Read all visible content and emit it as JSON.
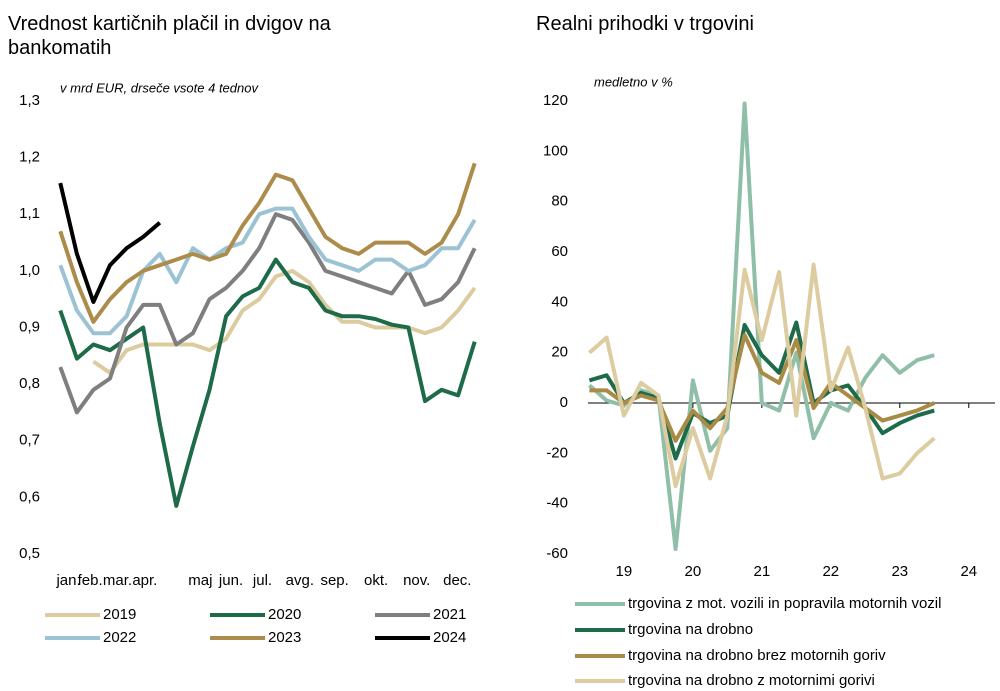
{
  "chart_data": [
    {
      "type": "line",
      "title": "Vrednost kartičnih plačil in dvigov na bankomatih",
      "subtitle": "v mrd EUR, drseče vsote 4 tednov",
      "x": [
        1,
        3,
        5,
        7,
        9,
        11,
        13,
        15,
        17,
        19,
        21,
        23,
        25,
        27,
        29,
        31,
        33,
        35,
        37,
        39,
        41,
        43,
        45,
        47,
        49,
        51
      ],
      "xlim": [
        0,
        52
      ],
      "xticks": [
        {
          "value": 2,
          "label": "jan."
        },
        {
          "value": 4.6,
          "label": "feb."
        },
        {
          "value": 7.9,
          "label": "mar."
        },
        {
          "value": 11.2,
          "label": "apr."
        },
        {
          "value": 17.9,
          "label": "maj"
        },
        {
          "value": 21.6,
          "label": "jun."
        },
        {
          "value": 25.4,
          "label": "jul."
        },
        {
          "value": 29.9,
          "label": "avg."
        },
        {
          "value": 34.1,
          "label": "sep."
        },
        {
          "value": 39.1,
          "label": "okt."
        },
        {
          "value": 44,
          "label": "nov."
        },
        {
          "value": 48.9,
          "label": "dec."
        }
      ],
      "ylim": [
        0.5,
        1.3
      ],
      "yticks": [
        {
          "value": 0.5,
          "label": "0,5"
        },
        {
          "value": 0.6,
          "label": "0,6"
        },
        {
          "value": 0.7,
          "label": "0,7"
        },
        {
          "value": 0.8,
          "label": "0,8"
        },
        {
          "value": 0.9,
          "label": "0,9"
        },
        {
          "value": 1.0,
          "label": "1,0"
        },
        {
          "value": 1.1,
          "label": "1,1"
        },
        {
          "value": 1.2,
          "label": "1,2"
        },
        {
          "value": 1.3,
          "label": "1,3"
        }
      ],
      "grid": false,
      "series": [
        {
          "name": "2019",
          "color": "#dccb9f",
          "values": [
            null,
            null,
            0.84,
            0.82,
            0.86,
            0.87,
            0.87,
            0.87,
            0.87,
            0.86,
            0.88,
            0.93,
            0.95,
            0.99,
            1.0,
            0.98,
            0.94,
            0.91,
            0.91,
            0.9,
            0.9,
            0.9,
            0.89,
            0.9,
            0.93,
            0.97
          ]
        },
        {
          "name": "2020",
          "color": "#1e6b4a",
          "values": [
            0.93,
            0.845,
            0.87,
            0.86,
            0.88,
            0.9,
            0.73,
            0.585,
            0.69,
            0.79,
            0.92,
            0.955,
            0.97,
            1.02,
            0.98,
            0.97,
            0.93,
            0.92,
            0.92,
            0.915,
            0.905,
            0.9,
            0.77,
            0.79,
            0.78,
            0.875
          ]
        },
        {
          "name": "2021",
          "color": "#7f7f7f",
          "values": [
            0.83,
            0.75,
            0.79,
            0.81,
            0.9,
            0.94,
            0.94,
            0.87,
            0.89,
            0.95,
            0.97,
            1.0,
            1.04,
            1.1,
            1.09,
            1.05,
            1.0,
            0.99,
            0.98,
            0.97,
            0.96,
            1.0,
            0.94,
            0.95,
            0.98,
            1.04
          ]
        },
        {
          "name": "2022",
          "color": "#9cc3d3",
          "values": [
            1.01,
            0.93,
            0.89,
            0.89,
            0.92,
            1.0,
            1.03,
            0.98,
            1.04,
            1.02,
            1.04,
            1.05,
            1.1,
            1.11,
            1.11,
            1.06,
            1.02,
            1.01,
            1.0,
            1.02,
            1.02,
            1.0,
            1.01,
            1.04,
            1.04,
            1.09
          ]
        },
        {
          "name": "2023",
          "color": "#ad8c4b",
          "values": [
            1.07,
            0.98,
            0.91,
            0.95,
            0.98,
            1.0,
            1.01,
            1.02,
            1.03,
            1.02,
            1.03,
            1.08,
            1.12,
            1.17,
            1.16,
            1.11,
            1.06,
            1.04,
            1.03,
            1.05,
            1.05,
            1.05,
            1.03,
            1.05,
            1.1,
            1.19
          ]
        },
        {
          "name": "2024",
          "color": "#000000",
          "values": [
            1.155,
            1.03,
            0.945,
            1.01,
            1.04,
            1.06,
            1.085,
            null,
            null,
            null,
            null,
            null,
            null,
            null,
            null,
            null,
            null,
            null,
            null,
            null,
            null,
            null,
            null,
            null,
            null,
            null
          ]
        }
      ]
    },
    {
      "type": "line",
      "title": "Realni prihodki v trgovini",
      "subtitle": "medletno v %",
      "x": [
        18.5,
        18.75,
        19,
        19.25,
        19.5,
        19.75,
        20,
        20.25,
        20.5,
        20.75,
        21,
        21.25,
        21.5,
        21.75,
        22,
        22.25,
        22.5,
        22.75,
        23,
        23.25,
        23.5
      ],
      "xlim": [
        18.48,
        24.38
      ],
      "xticks": [
        19,
        20,
        21,
        22,
        23,
        24
      ],
      "ylim": [
        -60,
        120
      ],
      "yticks": [
        -60,
        -40,
        -20,
        0,
        20,
        40,
        60,
        80,
        100,
        120
      ],
      "grid": false,
      "series": [
        {
          "name": "trgovina z mot. vozili in popravila motornih vozil",
          "color": "#8fbfa8",
          "values": [
            7,
            1,
            -1,
            5,
            3,
            -58,
            9,
            -19,
            -10,
            119,
            0,
            -3,
            20,
            -14,
            0,
            -3,
            10,
            19,
            12,
            17,
            19
          ]
        },
        {
          "name": "trgovina na drobno",
          "color": "#1e6b4a",
          "values": [
            9,
            11,
            0,
            4,
            2,
            -22,
            -4,
            -8,
            -5,
            31,
            19,
            12,
            32,
            0,
            5,
            7,
            -2,
            -12,
            -8,
            -5,
            -3
          ]
        },
        {
          "name": "trgovina na drobno brez motornih goriv",
          "color": "#a88b45",
          "values": [
            5,
            5,
            0,
            3,
            1,
            -15,
            -3,
            -10,
            -2,
            27,
            12,
            8,
            25,
            -2,
            8,
            3,
            -2,
            -7,
            -5,
            -3,
            0
          ]
        },
        {
          "name": "trgovina na drobno z motornimi gorivi",
          "color": "#dccca0",
          "values": [
            20,
            26,
            -5,
            8,
            3,
            -33,
            -10,
            -30,
            -5,
            53,
            25,
            52,
            -5,
            55,
            5,
            22,
            -2,
            -30,
            -28,
            -20,
            -14
          ]
        }
      ]
    }
  ]
}
